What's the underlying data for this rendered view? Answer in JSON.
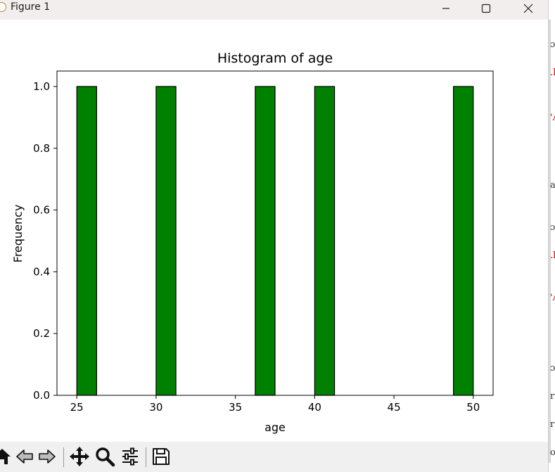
{
  "window": {
    "title": "Figure 1"
  },
  "chart_data": {
    "type": "bar",
    "title": "Histogram of age",
    "xlabel": "age",
    "ylabel": "Frequency",
    "bins": [
      {
        "x0": 25.0,
        "x1": 26.25,
        "count": 1
      },
      {
        "x0": 30.0,
        "x1": 31.25,
        "count": 1
      },
      {
        "x0": 36.25,
        "x1": 37.5,
        "count": 1
      },
      {
        "x0": 40.0,
        "x1": 41.25,
        "count": 1
      },
      {
        "x0": 48.75,
        "x1": 50.0,
        "count": 1
      }
    ],
    "bar_color": "#008000",
    "edge_color": "#000000",
    "xlim": [
      23.75,
      51.25
    ],
    "ylim": [
      0,
      1.05
    ],
    "xticks": [
      25,
      30,
      35,
      40,
      45,
      50
    ],
    "yticks": [
      0.0,
      0.2,
      0.4,
      0.6,
      0.8,
      1.0
    ],
    "xtick_labels": [
      "25",
      "30",
      "35",
      "40",
      "45",
      "50"
    ],
    "ytick_labels": [
      "0.0",
      "0.2",
      "0.4",
      "0.6",
      "0.8",
      "1.0"
    ],
    "grid": false,
    "legend": "none"
  },
  "toolbar": {
    "buttons": [
      "home-icon",
      "back-icon",
      "forward-icon",
      "pan-icon",
      "zoom-icon",
      "configure-subplots-icon",
      "save-icon"
    ]
  }
}
